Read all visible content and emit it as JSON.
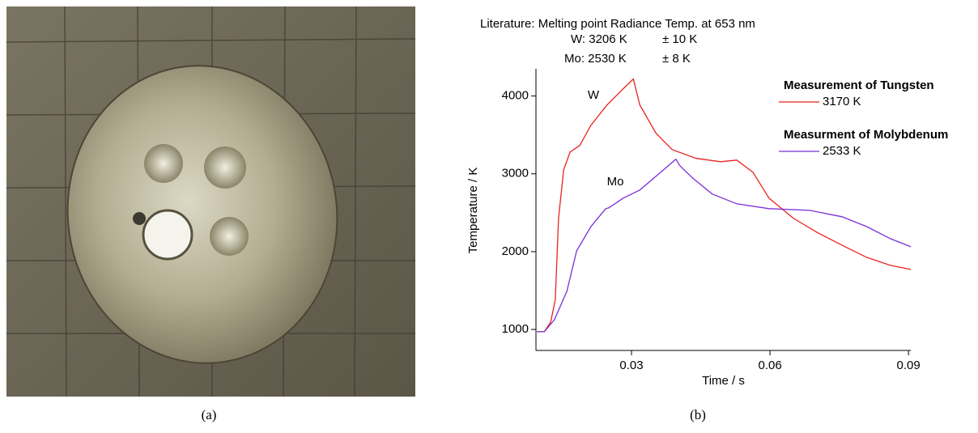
{
  "chart_data": {
    "type": "line",
    "x_label": "Time / s",
    "y_label": "Temperature / K",
    "xlim": [
      0.0093,
      0.0905
    ],
    "ylim": [
      730,
      4350
    ],
    "xticks": [
      0.03,
      0.06,
      0.09
    ],
    "yticks": [
      1000,
      2000,
      3000,
      4000
    ],
    "notes": [
      "Literature: Melting point Radiance Temp. at 653 nm",
      "W: 3206 K",
      "± 10 K",
      "Mo: 2530 K",
      "± 8 K"
    ],
    "legend_titles": [
      "Measurement of Tungsten",
      "Measurment of Molybdenum"
    ],
    "annotations": [
      "W",
      "Mo"
    ],
    "series": [
      {
        "name": "3170 K",
        "color": "#e8231f",
        "x": [
          0.0095,
          0.0111,
          0.0125,
          0.0135,
          0.0142,
          0.0153,
          0.0167,
          0.0188,
          0.0212,
          0.0247,
          0.0282,
          0.0304,
          0.0318,
          0.0353,
          0.0388,
          0.044,
          0.0493,
          0.0528,
          0.0563,
          0.0598,
          0.0651,
          0.0704,
          0.0756,
          0.0809,
          0.0861,
          0.0905
        ],
        "values": [
          970,
          970,
          1094,
          1385,
          2427,
          3052,
          3281,
          3365,
          3625,
          3885,
          4094,
          4219,
          3885,
          3521,
          3312,
          3198,
          3156,
          3177,
          3021,
          2688,
          2427,
          2240,
          2083,
          1927,
          1823,
          1771
        ]
      },
      {
        "name": "2533 K",
        "color": "#7b2fd8",
        "x": [
          0.0095,
          0.0111,
          0.0133,
          0.016,
          0.0181,
          0.0212,
          0.0244,
          0.0251,
          0.0282,
          0.0318,
          0.0353,
          0.0396,
          0.0405,
          0.0432,
          0.0475,
          0.0528,
          0.0598,
          0.0686,
          0.0756,
          0.0809,
          0.0861,
          0.0905
        ],
        "values": [
          970,
          970,
          1125,
          1490,
          2010,
          2323,
          2552,
          2563,
          2688,
          2792,
          2969,
          3188,
          3104,
          2948,
          2740,
          2615,
          2552,
          2531,
          2448,
          2323,
          2167,
          2063
        ]
      }
    ]
  },
  "captions": [
    "(a)",
    "(b)"
  ]
}
